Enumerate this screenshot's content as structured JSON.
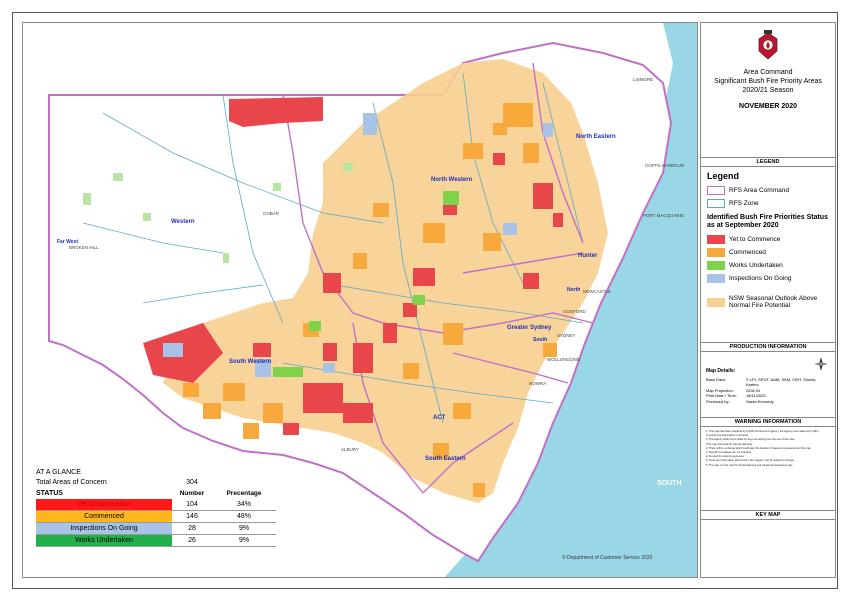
{
  "title": {
    "line1": "Area Command",
    "line2": "Significant Bush Fire Priority Areas",
    "line3": "2020/21 Season",
    "month": "NOVEMBER 2020"
  },
  "legend": {
    "header": "LEGEND",
    "title": "Legend",
    "area_command": "RFS Area Command",
    "zone": "RFS Zone",
    "priorities_title": "Identified Bush Fire Priorities Status as at September 2020",
    "items": [
      {
        "label": "Yet to Commence",
        "color": "#e8464a"
      },
      {
        "label": "Commenced",
        "color": "#f7a93c"
      },
      {
        "label": "Works Undertaken",
        "color": "#7dd34a"
      },
      {
        "label": "Inspections On Going",
        "color": "#a9c3e6"
      }
    ],
    "outlook": "NSW Seasonal Outlook Above Normal Fire Potential",
    "outlook_color": "#f8cf8f",
    "area_command_color": "#c070c8",
    "zone_color": "#5aaac8"
  },
  "production": {
    "header": "PRODUCTION INFORMATION",
    "map_details": "Map Details:",
    "rows": [
      {
        "k": "Base Data:",
        "v": "© LPI, SPOT, AAM, SKM, OEH, Sinmis, Kartmo"
      },
      {
        "k": "Map Projection:",
        "v": "GDA 94"
      },
      {
        "k": "Print Date / Time:",
        "v": "18/11/2020"
      },
      {
        "k": "Produced by:",
        "v": "Sarah Kennedy"
      }
    ]
  },
  "warning": {
    "header": "WARNING INFORMATION",
    "lines": [
      "1. This map has been prepared by a NSW Government Agency, the Agency has made every effort",
      "to ensure the information is accurate.",
      "2. The Agency shall not be liable for any loss arising from the use of this map.",
      "This map was used for internal planning.",
      "3. There will be a change which could alter the location of features represented on this map.",
      "4. Specific boundaries are not intended",
      "to be used for planning purposes.",
      "5. Areas and information derived from the imagery may be subject to change.",
      "6. The map is to be used for broad planning and situational awareness only."
    ]
  },
  "keymap": {
    "header": "KEY MAP"
  },
  "glance": {
    "title": "AT A GLANCE",
    "total_label": "Total Areas of Concern",
    "total": "304",
    "status_label": "STATUS",
    "number_label": "Number",
    "percentage_label": "Precentage",
    "rows": [
      {
        "label": "Yet to commence",
        "number": "104",
        "percent": "34%",
        "color": "#ff1a1a",
        "text_color": "#c80000"
      },
      {
        "label": "Commenced",
        "number": "146",
        "percent": "48%",
        "color": "#ffb61c",
        "text_color": "#000000"
      },
      {
        "label": "Inspections On Going",
        "number": "28",
        "percent": "9%",
        "color": "#a9c3e6",
        "text_color": "#000000"
      },
      {
        "label": "Works Undertaken",
        "number": "26",
        "percent": "9%",
        "color": "#22b04a",
        "text_color": "#000000"
      }
    ]
  },
  "copyright": "© Department of Customer Service 2020",
  "map_labels": {
    "regions": [
      "North Western",
      "North Eastern",
      "Western",
      "Hunter",
      "Greater Sydney",
      "South Western",
      "South Eastern",
      "ACT"
    ],
    "places": [
      "BROKEN HILL",
      "LISMORE",
      "COFFS HARBOUR",
      "PORT MACQUARIE",
      "NEWCASTLE",
      "GOSFORD",
      "SYDNEY",
      "WOLLONGONG",
      "NOWRA",
      "ALBURY",
      "COBAR",
      "SOUTH"
    ],
    "overlay_labels": [
      "Far West",
      "North",
      "South"
    ]
  }
}
